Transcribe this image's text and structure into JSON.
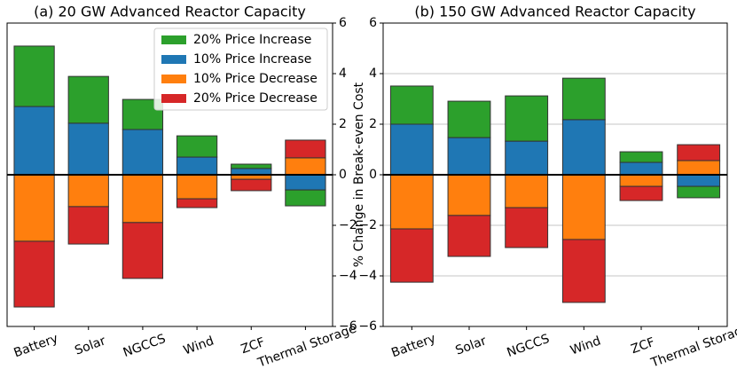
{
  "chart_data": [
    {
      "type": "bar",
      "title": "(a) 20 GW Advanced Reactor Capacity",
      "ylabel": "% Change in Break-even Cost",
      "categories": [
        "Battery",
        "Solar",
        "NGCCS",
        "Wind",
        "ZCF",
        "Thermal Storage"
      ],
      "series": [
        {
          "name": "20% Price Increase",
          "color": "#2ca02c",
          "values": [
            2.39,
            1.85,
            1.19,
            0.84,
            0.17,
            -0.63
          ]
        },
        {
          "name": "10% Price Increase",
          "color": "#1f77b4",
          "values": [
            2.7,
            2.04,
            1.79,
            0.7,
            0.25,
            -0.6
          ]
        },
        {
          "name": "10% Price Decrease",
          "color": "#ff7f0e",
          "values": [
            -2.63,
            -1.26,
            -1.89,
            -0.95,
            -0.18,
            0.67
          ]
        },
        {
          "name": "20% Price Decrease",
          "color": "#d62728",
          "values": [
            -2.6,
            -1.48,
            -2.21,
            -0.35,
            -0.45,
            0.7
          ]
        }
      ],
      "ylim": [
        -6,
        6
      ],
      "yticks": [
        {
          "value": -6,
          "label": "−6"
        },
        {
          "value": -4,
          "label": "−4"
        },
        {
          "value": -2,
          "label": "−2"
        },
        0,
        2,
        4,
        6
      ],
      "grid": false,
      "legend": "upper right"
    },
    {
      "type": "bar",
      "title": "(b) 150 GW Advanced Reactor Capacity",
      "categories": [
        "Battery",
        "Solar",
        "NGCCS",
        "Wind",
        "ZCF",
        "Thermal Storage"
      ],
      "series": [
        {
          "name": "20% Price Increase",
          "color": "#2ca02c",
          "values": [
            1.51,
            1.44,
            1.79,
            1.64,
            0.42,
            -0.45
          ]
        },
        {
          "name": "10% Price Increase",
          "color": "#1f77b4",
          "values": [
            2.0,
            1.47,
            1.33,
            2.18,
            0.49,
            -0.46
          ]
        },
        {
          "name": "10% Price Decrease",
          "color": "#ff7f0e",
          "values": [
            -2.14,
            -1.61,
            -1.3,
            -2.56,
            -0.46,
            0.56
          ]
        },
        {
          "name": "20% Price Decrease",
          "color": "#d62728",
          "values": [
            -2.11,
            -1.62,
            -1.58,
            -2.49,
            -0.56,
            0.63
          ]
        }
      ],
      "ylim": [
        -6,
        6
      ],
      "yticks": [
        {
          "value": -6,
          "label": "−6"
        },
        {
          "value": -4,
          "label": "−4"
        },
        {
          "value": -2,
          "label": "−2"
        },
        0,
        2,
        4,
        6
      ],
      "grid": true
    }
  ]
}
